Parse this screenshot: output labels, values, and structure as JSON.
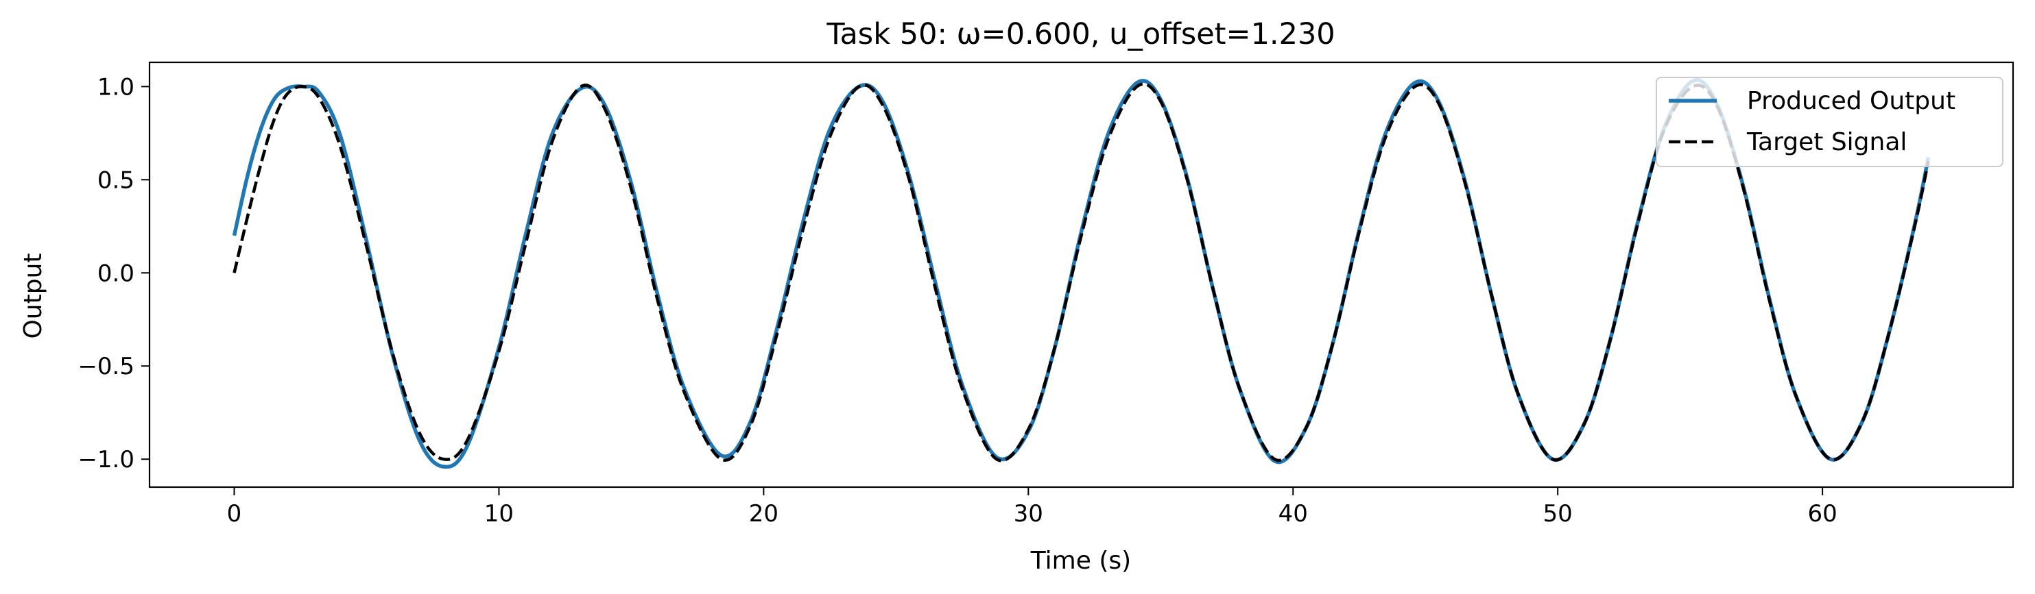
{
  "chart_data": {
    "type": "line",
    "title": "Task 50: ω=0.600, u_offset=1.230",
    "xlabel": "Time (s)",
    "ylabel": "Output",
    "xlim": [
      -3.2,
      67.2
    ],
    "ylim": [
      -1.15,
      1.13
    ],
    "x_ticks": [
      0,
      10,
      20,
      30,
      40,
      50,
      60
    ],
    "x_tick_labels": [
      "0",
      "10",
      "20",
      "30",
      "40",
      "50",
      "60"
    ],
    "y_ticks": [
      1.0,
      0.5,
      0.0,
      -0.5,
      -1.0
    ],
    "y_tick_labels": [
      "1.0",
      "0.5",
      "0.0",
      "−0.5",
      "−1.0"
    ],
    "grid": false,
    "legend_position": "upper right",
    "series": [
      {
        "name": "Produced Output",
        "style": "solid",
        "color": "#1f77b4",
        "x": [
          0,
          0.5,
          1,
          1.5,
          2,
          2.6,
          3.2,
          4,
          5,
          6,
          7,
          7.9,
          8.8,
          10,
          11,
          12,
          13.1,
          14,
          15,
          16,
          17,
          18.4,
          19.5,
          20.5,
          21.5,
          22.5,
          23.6,
          24.5,
          25.5,
          26.5,
          27.5,
          28.8,
          30,
          31,
          32,
          33,
          34.1,
          35,
          36,
          37,
          38,
          39.3,
          40.5,
          41.5,
          42.5,
          43.5,
          44.6,
          45.5,
          46.5,
          47.5,
          48.5,
          49.8,
          51,
          52,
          53,
          54,
          55.1,
          56,
          57,
          58,
          59,
          60.3,
          61.5,
          62.5,
          63.5,
          64
        ],
        "y": [
          0.2,
          0.52,
          0.77,
          0.93,
          0.99,
          1.0,
          0.97,
          0.74,
          0.17,
          -0.45,
          -0.9,
          -1.04,
          -0.93,
          -0.4,
          0.2,
          0.74,
          0.99,
          0.9,
          0.48,
          -0.12,
          -0.62,
          -0.98,
          -0.8,
          -0.3,
          0.28,
          0.77,
          1.0,
          0.92,
          0.52,
          -0.06,
          -0.6,
          -0.99,
          -0.85,
          -0.4,
          0.22,
          0.74,
          1.02,
          0.93,
          0.51,
          -0.1,
          -0.63,
          -1.01,
          -0.83,
          -0.38,
          0.23,
          0.75,
          1.02,
          0.92,
          0.49,
          -0.12,
          -0.65,
          -1.0,
          -0.81,
          -0.35,
          0.26,
          0.77,
          1.03,
          0.91,
          0.47,
          -0.14,
          -0.66,
          -1.0,
          -0.8,
          -0.33,
          0.27,
          0.62
        ]
      },
      {
        "name": "Target Signal",
        "style": "dashed",
        "color": "#000000",
        "x": [
          0,
          0.5,
          1,
          1.5,
          2,
          2.6,
          3.2,
          4,
          5,
          6,
          7,
          7.9,
          8.8,
          10,
          11,
          12,
          13.1,
          14,
          15,
          16,
          17,
          18.4,
          19.5,
          20.5,
          21.5,
          22.5,
          23.6,
          24.5,
          25.5,
          26.5,
          27.5,
          28.8,
          30,
          31,
          32,
          33,
          34.1,
          35,
          36,
          37,
          38,
          39.3,
          40.5,
          41.5,
          42.5,
          43.5,
          44.6,
          45.5,
          46.5,
          47.5,
          48.5,
          49.8,
          51,
          52,
          53,
          54,
          55.1,
          56,
          57,
          58,
          59,
          60.3,
          61.5,
          62.5,
          63.5,
          64
        ],
        "y": [
          0.0,
          0.3,
          0.58,
          0.82,
          0.96,
          1.0,
          0.94,
          0.68,
          0.14,
          -0.44,
          -0.86,
          -1.0,
          -0.9,
          -0.42,
          0.15,
          0.7,
          1.0,
          0.88,
          0.45,
          -0.15,
          -0.64,
          -1.0,
          -0.82,
          -0.33,
          0.24,
          0.73,
          1.0,
          0.9,
          0.5,
          -0.09,
          -0.62,
          -1.0,
          -0.84,
          -0.4,
          0.2,
          0.71,
          1.0,
          0.92,
          0.5,
          -0.1,
          -0.63,
          -1.0,
          -0.83,
          -0.38,
          0.22,
          0.73,
          1.0,
          0.91,
          0.48,
          -0.12,
          -0.65,
          -1.0,
          -0.81,
          -0.35,
          0.25,
          0.76,
          1.0,
          0.9,
          0.46,
          -0.15,
          -0.66,
          -1.0,
          -0.8,
          -0.33,
          0.26,
          0.6
        ]
      }
    ]
  }
}
